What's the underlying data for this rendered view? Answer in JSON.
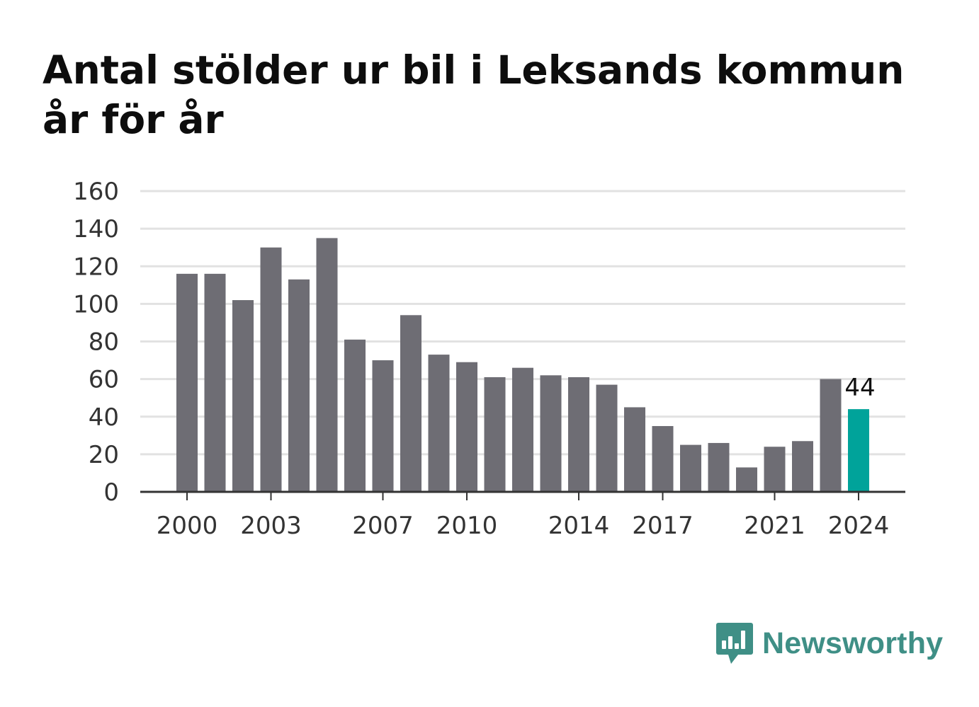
{
  "chart_data": {
    "type": "bar",
    "title": "Antal stölder ur bil i Leksands kommun år för år",
    "categories": [
      "2000",
      "2001",
      "2002",
      "2003",
      "2004",
      "2005",
      "2006",
      "2007",
      "2008",
      "2009",
      "2010",
      "2011",
      "2012",
      "2013",
      "2014",
      "2015",
      "2016",
      "2017",
      "2018",
      "2019",
      "2020",
      "2021",
      "2022",
      "2023",
      "2024"
    ],
    "values": [
      116,
      116,
      102,
      130,
      113,
      135,
      81,
      70,
      94,
      73,
      69,
      61,
      66,
      62,
      61,
      57,
      45,
      35,
      25,
      26,
      13,
      24,
      27,
      60,
      44
    ],
    "x_tick_labels": [
      "2000",
      "2003",
      "2007",
      "2010",
      "2014",
      "2017",
      "2021",
      "2024"
    ],
    "y_ticks": [
      0,
      20,
      40,
      60,
      80,
      100,
      120,
      140,
      160
    ],
    "ylim": [
      0,
      160
    ],
    "grid": true,
    "highlight": {
      "category": "2024",
      "label": "44"
    },
    "colors": {
      "bar": "#6e6d74",
      "highlight": "#00a39a",
      "grid": "#e2e2e2",
      "axis": "#333333"
    }
  },
  "brand": {
    "name": "Newsworthy",
    "color": "#3f8f86",
    "icon": "newsworthy-logo-icon"
  }
}
